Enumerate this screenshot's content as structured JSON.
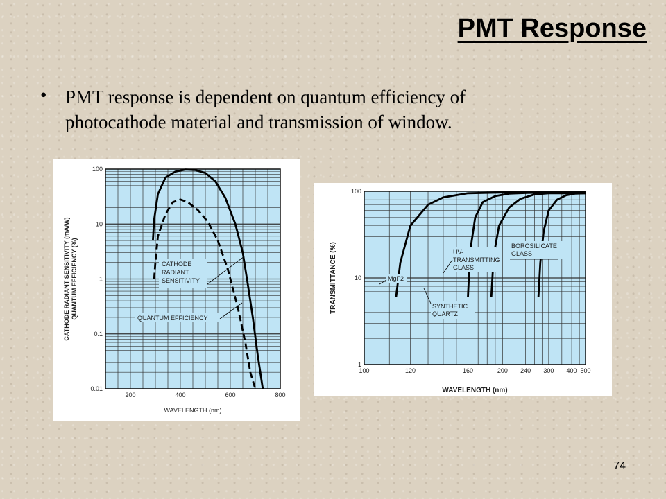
{
  "slide": {
    "title": "PMT Response",
    "bullet": "PMT response is dependent on quantum efficiency of photocathode material and transmission of window.",
    "page_number": "74"
  },
  "chart_data": [
    {
      "type": "line",
      "title": "",
      "xlabel": "WAVELENGTH (nm)",
      "ylabel": "CATHODE RADIANT SENSITIVITY (mA/W) QUANTUM EFFICIENCY (%)",
      "ylabel_lines": [
        "CATHODE RADIANT SENSITIVITY (mA/W)",
        "QUANTUM EFFICIENCY (%)"
      ],
      "xscale": "linear",
      "yscale": "log",
      "xlim": [
        100,
        800
      ],
      "ylim": [
        0.01,
        100
      ],
      "xticks": [
        200,
        400,
        600,
        800
      ],
      "yticks": [
        {
          "value": 100,
          "label": "100"
        },
        {
          "value": 10,
          "label": "10"
        },
        {
          "value": 1,
          "label": "1"
        },
        {
          "value": 0.1,
          "label": "0.1"
        },
        {
          "value": 0.01,
          "label": "0.01"
        }
      ],
      "grid": true,
      "plot_background": "#bfe4f5",
      "series": [
        {
          "style": "solid",
          "x": [
            290,
            295,
            310,
            340,
            380,
            420,
            460,
            500,
            540,
            580,
            620,
            650,
            670,
            690,
            710,
            730
          ],
          "y": [
            5,
            12,
            35,
            70,
            90,
            98,
            96,
            85,
            60,
            30,
            10,
            3,
            0.8,
            0.2,
            0.04,
            0.01
          ]
        },
        {
          "style": "dashed",
          "x": [
            295,
            300,
            310,
            340,
            370,
            400,
            430,
            470,
            510,
            550,
            590,
            630,
            660,
            680,
            700
          ],
          "y": [
            1,
            2,
            6,
            15,
            25,
            28,
            25,
            18,
            11,
            5,
            1.5,
            0.3,
            0.07,
            0.02,
            0.01
          ]
        }
      ],
      "annotations": [
        {
          "label_lines": [
            "CATHODE",
            "RADIANT",
            "SENSITIVITY"
          ],
          "points_to": "solid"
        },
        {
          "label_lines": [
            "QUANTUM EFFICIENCY"
          ],
          "points_to": "dashed"
        }
      ]
    },
    {
      "type": "line",
      "title": "",
      "xlabel": "WAVELENGTH (nm)",
      "ylabel": "TRANSMITTANCE (%)",
      "xscale": "reciprocal",
      "yscale": "log",
      "xlim": [
        100,
        500
      ],
      "ylim": [
        1,
        100
      ],
      "xticks": [
        100,
        120,
        160,
        200,
        240,
        300,
        400,
        500
      ],
      "yticks": [
        {
          "value": 100,
          "label": "100"
        },
        {
          "value": 10,
          "label": "10"
        },
        {
          "value": 1,
          "label": "1"
        }
      ],
      "grid": true,
      "plot_background": "#bfe4f5",
      "series": [
        {
          "name": "MgF2",
          "label_lines": [
            "MgF2"
          ],
          "x": [
            113,
            115,
            120,
            130,
            140,
            160,
            200,
            300,
            500
          ],
          "y": [
            6,
            15,
            40,
            70,
            85,
            95,
            97,
            97,
            97
          ]
        },
        {
          "name": "SYNTHETIC QUARTZ",
          "label_lines": [
            "SYNTHETIC",
            "QUARTZ"
          ],
          "x": [
            160,
            162,
            167,
            175,
            190,
            210,
            250,
            300,
            500
          ],
          "y": [
            6,
            20,
            50,
            75,
            88,
            94,
            96,
            96,
            96
          ]
        },
        {
          "name": "UV-TRANSMITTING GLASS",
          "label_lines": [
            "UV-",
            "TRANSMITTING",
            "GLASS"
          ],
          "x": [
            185,
            188,
            195,
            210,
            230,
            260,
            300,
            500
          ],
          "y": [
            6,
            18,
            40,
            65,
            82,
            92,
            95,
            95
          ]
        },
        {
          "name": "BOROSILICATE GLASS",
          "label_lines": [
            "BOROSILICATE",
            "GLASS"
          ],
          "x": [
            270,
            275,
            285,
            300,
            330,
            370,
            420,
            500
          ],
          "y": [
            6,
            15,
            35,
            60,
            80,
            90,
            94,
            95
          ]
        }
      ]
    }
  ]
}
